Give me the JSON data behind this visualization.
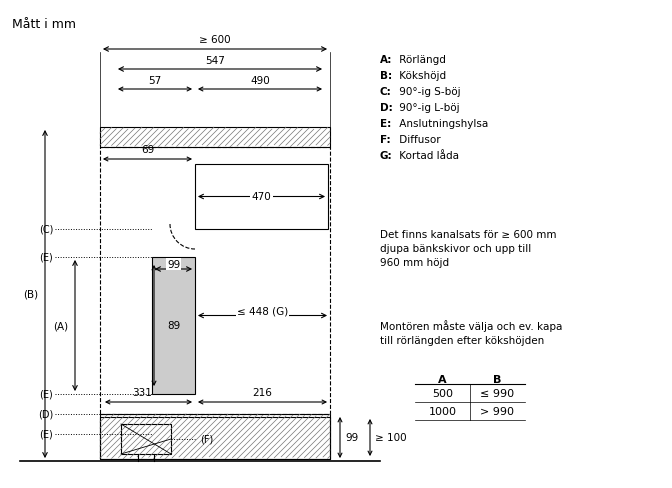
{
  "title": "Mått i mm",
  "legend": [
    "A: Rörlängd",
    "B: Kökshöjd",
    "C: 90°-ig S-böj",
    "D: 90°-ig L-böj",
    "E: Anslutningshylsa",
    "F: Diffusor",
    "G: Kortad låda"
  ],
  "text1": "Det finns kanalsats för ≥ 600 mm\ndjupa bänkskivor och upp till\n960 mm höjd",
  "text2": "Montören måste välja och ev. kapa\ntill rörlängden efter kökshöjden",
  "table_headers": [
    "A",
    "B"
  ],
  "table_rows": [
    [
      "500",
      "≤ 990"
    ],
    [
      "1000",
      "> 990"
    ]
  ],
  "bg_color": "#ffffff",
  "fg_color": "#000000",
  "hatch_color": "#555555"
}
